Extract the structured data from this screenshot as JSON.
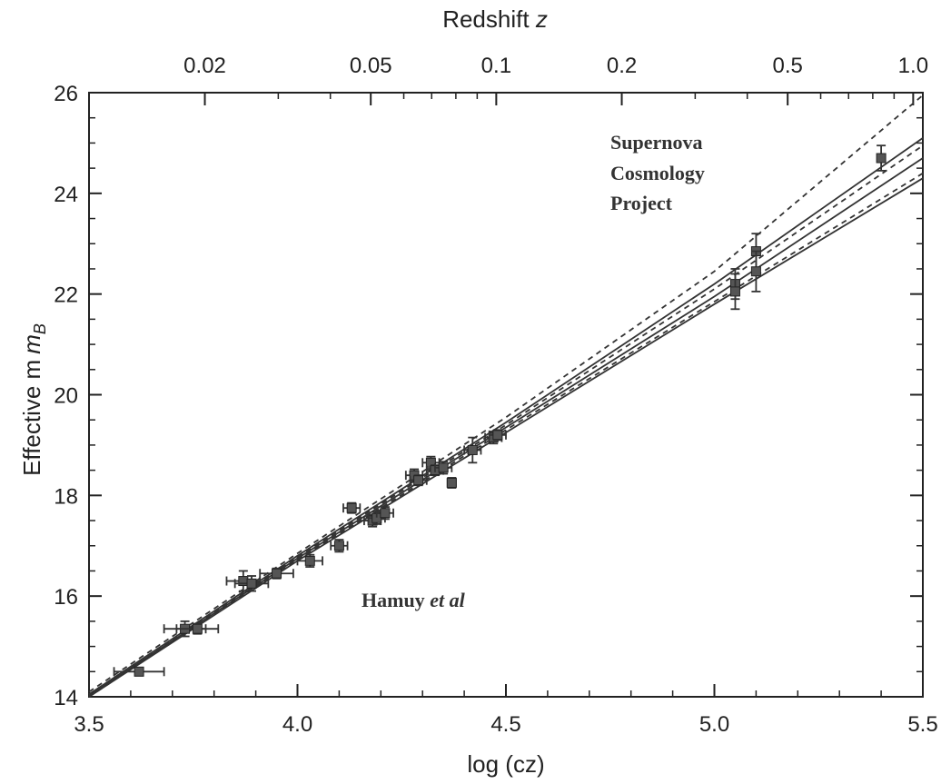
{
  "chart_data": {
    "type": "scatter",
    "xlabel": "log (cz)",
    "ylabel": "Effective m",
    "ylabel_sub": "B",
    "top_axis_label": "Redshift",
    "top_axis_label_var": "z",
    "xlim": [
      3.5,
      5.5
    ],
    "ylim": [
      14,
      26
    ],
    "x_ticks": [
      3.5,
      4.0,
      4.5,
      5.0,
      5.5
    ],
    "x_tick_labels": [
      "3.5",
      "4.0",
      "4.5",
      "5.0",
      "5.5"
    ],
    "y_ticks": [
      14,
      16,
      18,
      20,
      22,
      24,
      26
    ],
    "y_tick_labels": [
      "14",
      "16",
      "18",
      "20",
      "22",
      "24",
      "26"
    ],
    "top_ticks": [
      0.02,
      0.05,
      0.1,
      0.2,
      0.5,
      1.0
    ],
    "top_tick_labels": [
      "0.02",
      "0.05",
      "0.1",
      "0.2",
      "0.5",
      "1.0"
    ],
    "annotations": {
      "scp_line1": "Supernova",
      "scp_line2": "Cosmology",
      "scp_line3": "Project",
      "hamuy_name": "Hamuy",
      "hamuy_etal": "et al"
    },
    "series": [
      {
        "points": [
          {
            "x": 3.62,
            "y": 14.5,
            "xerr": 0.06,
            "yerr": 0.08
          },
          {
            "x": 3.73,
            "y": 15.35,
            "xerr": 0.05,
            "yerr": 0.15
          },
          {
            "x": 3.76,
            "y": 15.35,
            "xerr": 0.05,
            "yerr": 0.1
          },
          {
            "x": 3.87,
            "y": 16.3,
            "xerr": 0.04,
            "yerr": 0.2
          },
          {
            "x": 3.89,
            "y": 16.25,
            "xerr": 0.04,
            "yerr": 0.15
          },
          {
            "x": 3.95,
            "y": 16.45,
            "xerr": 0.04,
            "yerr": 0.1
          },
          {
            "x": 4.03,
            "y": 16.7,
            "xerr": 0.03,
            "yerr": 0.12
          },
          {
            "x": 4.1,
            "y": 17.0,
            "xerr": 0.02,
            "yerr": 0.12
          },
          {
            "x": 4.13,
            "y": 17.75,
            "xerr": 0.02,
            "yerr": 0.1
          },
          {
            "x": 4.18,
            "y": 17.5,
            "xerr": 0.02,
            "yerr": 0.12
          },
          {
            "x": 4.19,
            "y": 17.55,
            "xerr": 0.02,
            "yerr": 0.12
          },
          {
            "x": 4.21,
            "y": 17.65,
            "xerr": 0.02,
            "yerr": 0.12
          },
          {
            "x": 4.28,
            "y": 18.4,
            "xerr": 0.02,
            "yerr": 0.12
          },
          {
            "x": 4.29,
            "y": 18.3,
            "xerr": 0.02,
            "yerr": 0.1
          },
          {
            "x": 4.32,
            "y": 18.65,
            "xerr": 0.02,
            "yerr": 0.12
          },
          {
            "x": 4.33,
            "y": 18.5,
            "xerr": 0.02,
            "yerr": 0.1
          },
          {
            "x": 4.35,
            "y": 18.55,
            "xerr": 0.02,
            "yerr": 0.12
          },
          {
            "x": 4.37,
            "y": 18.25,
            "xerr": 0.01,
            "yerr": 0.1
          },
          {
            "x": 4.42,
            "y": 18.9,
            "xerr": 0.02,
            "yerr": 0.25
          },
          {
            "x": 4.47,
            "y": 19.15,
            "xerr": 0.02,
            "yerr": 0.12
          },
          {
            "x": 4.48,
            "y": 19.2,
            "xerr": 0.02,
            "yerr": 0.1
          },
          {
            "x": 5.05,
            "y": 22.2,
            "xerr": 0,
            "yerr": 0.3
          },
          {
            "x": 5.05,
            "y": 22.05,
            "xerr": 0,
            "yerr": 0.35
          },
          {
            "x": 5.1,
            "y": 22.85,
            "xerr": 0,
            "yerr": 0.35
          },
          {
            "x": 5.1,
            "y": 22.45,
            "xerr": 0,
            "yerr": 0.4
          },
          {
            "x": 5.4,
            "y": 24.7,
            "xerr": 0,
            "yerr": 0.25
          }
        ]
      }
    ],
    "model_curves": [
      {
        "style": "dashed",
        "points": [
          [
            3.5,
            14.1
          ],
          [
            4.0,
            16.85
          ],
          [
            4.5,
            19.55
          ],
          [
            5.0,
            22.45
          ],
          [
            5.5,
            25.95
          ]
        ]
      },
      {
        "style": "solid",
        "points": [
          [
            3.5,
            14.05
          ],
          [
            4.0,
            16.8
          ],
          [
            4.5,
            19.45
          ],
          [
            5.0,
            22.2
          ],
          [
            5.5,
            25.1
          ]
        ]
      },
      {
        "style": "dashed",
        "points": [
          [
            3.5,
            14.05
          ],
          [
            4.0,
            16.78
          ],
          [
            4.5,
            19.4
          ],
          [
            5.0,
            22.1
          ],
          [
            5.5,
            24.95
          ]
        ]
      },
      {
        "style": "solid",
        "points": [
          [
            3.5,
            14.02
          ],
          [
            4.0,
            16.75
          ],
          [
            4.5,
            19.35
          ],
          [
            5.0,
            21.95
          ],
          [
            5.5,
            24.7
          ]
        ]
      },
      {
        "style": "dashed",
        "points": [
          [
            3.5,
            14.0
          ],
          [
            4.0,
            16.72
          ],
          [
            4.5,
            19.3
          ],
          [
            5.0,
            21.85
          ],
          [
            5.5,
            24.4
          ]
        ]
      },
      {
        "style": "solid",
        "points": [
          [
            3.5,
            14.0
          ],
          [
            4.0,
            16.7
          ],
          [
            4.5,
            19.25
          ],
          [
            5.0,
            21.8
          ],
          [
            5.5,
            24.3
          ]
        ]
      }
    ],
    "grid": false
  }
}
